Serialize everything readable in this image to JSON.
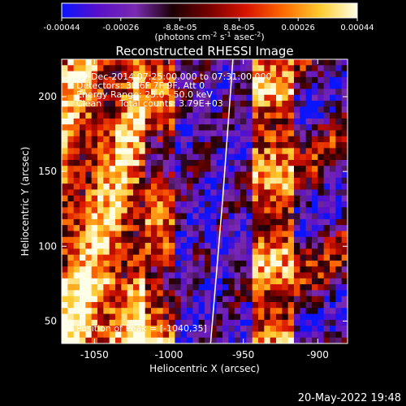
{
  "chart_data": {
    "type": "heatmap",
    "title": "Reconstructed RHESSI Image",
    "xlabel": "Heliocentric X (arcsec)",
    "ylabel": "Heliocentric Y (arcsec)",
    "xlim": [
      -1072,
      -880
    ],
    "ylim": [
      35,
      225
    ],
    "xticks": [
      -1050,
      -1000,
      -950,
      -900
    ],
    "yticks": [
      50,
      100,
      150,
      200
    ],
    "colorbar": {
      "ticks": [
        "-0.00044",
        "-0.00026",
        "-8.8e-05",
        "8.8e-05",
        "0.00026",
        "0.00044"
      ],
      "unit_prefix": "(photons cm",
      "unit_sup1": "-2",
      "unit_mid1": " s",
      "unit_sup2": "-1",
      "unit_mid2": " asec",
      "unit_sup3": "-2",
      "unit_suffix": ")",
      "range": [
        -0.00044,
        0.00044
      ],
      "colors": [
        "#0a14ff",
        "#5a10c8",
        "#7a2ab0",
        "#1a0004",
        "#780000",
        "#d81400",
        "#ff6a00",
        "#ffcc30",
        "#ffffe8"
      ]
    },
    "annotations": {
      "time_range": "19-Dec-2014 07:25:00.000 to 07:31:00.000",
      "detectors": "Detectors: 3F 6F 7F 9F, Att 0",
      "energy": "Energy Range: 25.0 - 50.0 keV",
      "algorithm": "Clean",
      "counts": "Total counts: 3.79E+03",
      "peak": "Position of Peak = [-1040,35]"
    },
    "limb": {
      "x": [
        -972,
        -964,
        -957
      ],
      "y": [
        35,
        130,
        225
      ]
    },
    "grid": false,
    "timestamp": "20-May-2022 19:48"
  }
}
